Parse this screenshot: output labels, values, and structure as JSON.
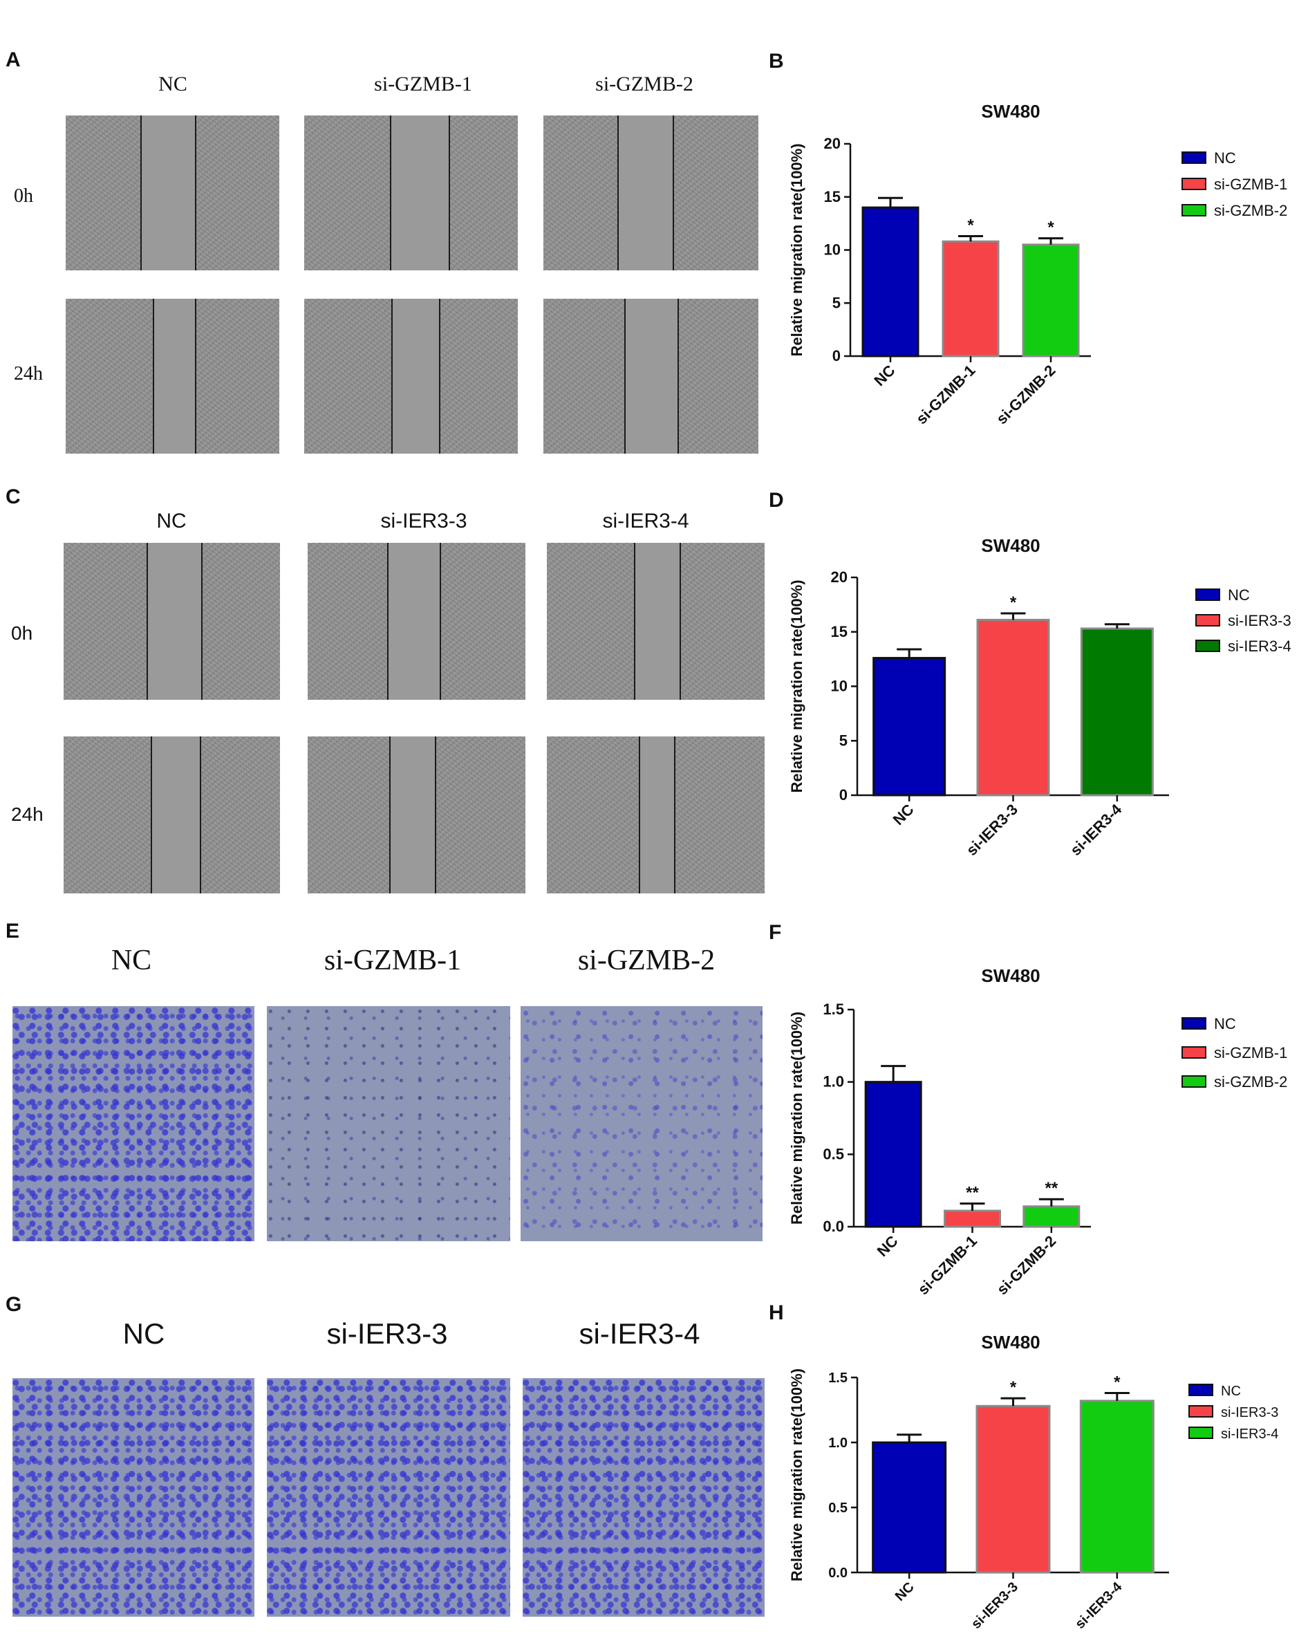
{
  "panels": {
    "A": {
      "letter": "A",
      "cols": [
        "NC",
        "si-GZMB-1",
        "si-GZMB-2"
      ],
      "rows": [
        "0h",
        "24h"
      ]
    },
    "C": {
      "letter": "C",
      "cols": [
        "NC",
        "si-IER3-3",
        "si-IER3-4"
      ],
      "rows": [
        "0h",
        "24h"
      ]
    },
    "E": {
      "letter": "E",
      "cols": [
        "NC",
        "si-GZMB-1",
        "si-GZMB-2"
      ]
    },
    "G": {
      "letter": "G",
      "cols": [
        "NC",
        "si-IER3-3",
        "si-IER3-4"
      ]
    }
  },
  "chart_data": [
    {
      "letter": "B",
      "type": "bar",
      "title": "SW480",
      "ylabel": "Relative migration rate(100%)",
      "ylim": [
        0,
        20
      ],
      "yticks": [
        "0",
        "5",
        "10",
        "15",
        "20"
      ],
      "categories": [
        "NC",
        "si-GZMB-1",
        "si-GZMB-2"
      ],
      "values": [
        14.0,
        10.8,
        10.5
      ],
      "errors": [
        0.9,
        0.5,
        0.6
      ],
      "significance": [
        "",
        "*",
        "*"
      ],
      "colors": [
        "#0000b4",
        "#f64348",
        "#12cc12"
      ],
      "legend": [
        "NC",
        "si-GZMB-1",
        "si-GZMB-2"
      ]
    },
    {
      "letter": "D",
      "type": "bar",
      "title": "SW480",
      "ylabel": "Relative migration rate(100%)",
      "ylim": [
        0,
        20
      ],
      "yticks": [
        "0",
        "5",
        "10",
        "15",
        "20"
      ],
      "categories": [
        "NC",
        "si-IER3-3",
        "si-IER3-4"
      ],
      "values": [
        12.6,
        16.1,
        15.3
      ],
      "errors": [
        0.8,
        0.6,
        0.4
      ],
      "significance": [
        "",
        "*",
        ""
      ],
      "colors": [
        "#0000b4",
        "#f64348",
        "#007a00"
      ],
      "legend": [
        "NC",
        "si-IER3-3",
        "si-IER3-4"
      ]
    },
    {
      "letter": "F",
      "type": "bar",
      "title": "SW480",
      "ylabel": "Relative migration rate(100%)",
      "ylim": [
        0,
        1.5
      ],
      "yticks": [
        "0.0",
        "0.5",
        "1.0",
        "1.5"
      ],
      "categories": [
        "NC",
        "si-GZMB-1",
        "si-GZMB-2"
      ],
      "values": [
        1.0,
        0.11,
        0.14
      ],
      "errors": [
        0.11,
        0.05,
        0.05
      ],
      "significance": [
        "",
        "**",
        "**"
      ],
      "colors": [
        "#0000b4",
        "#f64348",
        "#12cc12"
      ],
      "legend": [
        "NC",
        "si-GZMB-1",
        "si-GZMB-2"
      ]
    },
    {
      "letter": "H",
      "type": "bar",
      "title": "SW480",
      "ylabel": "Relative migration rate(100%)",
      "ylim": [
        0,
        1.5
      ],
      "yticks": [
        "0.0",
        "0.5",
        "1.0",
        "1.5"
      ],
      "categories": [
        "NC",
        "si-IER3-3",
        "si-IER3-4"
      ],
      "values": [
        1.0,
        1.28,
        1.32
      ],
      "errors": [
        0.06,
        0.06,
        0.06
      ],
      "significance": [
        "",
        "*",
        "*"
      ],
      "colors": [
        "#0000b4",
        "#f64348",
        "#12cc12"
      ],
      "legend": [
        "NC",
        "si-IER3-3",
        "si-IER3-4"
      ]
    }
  ]
}
